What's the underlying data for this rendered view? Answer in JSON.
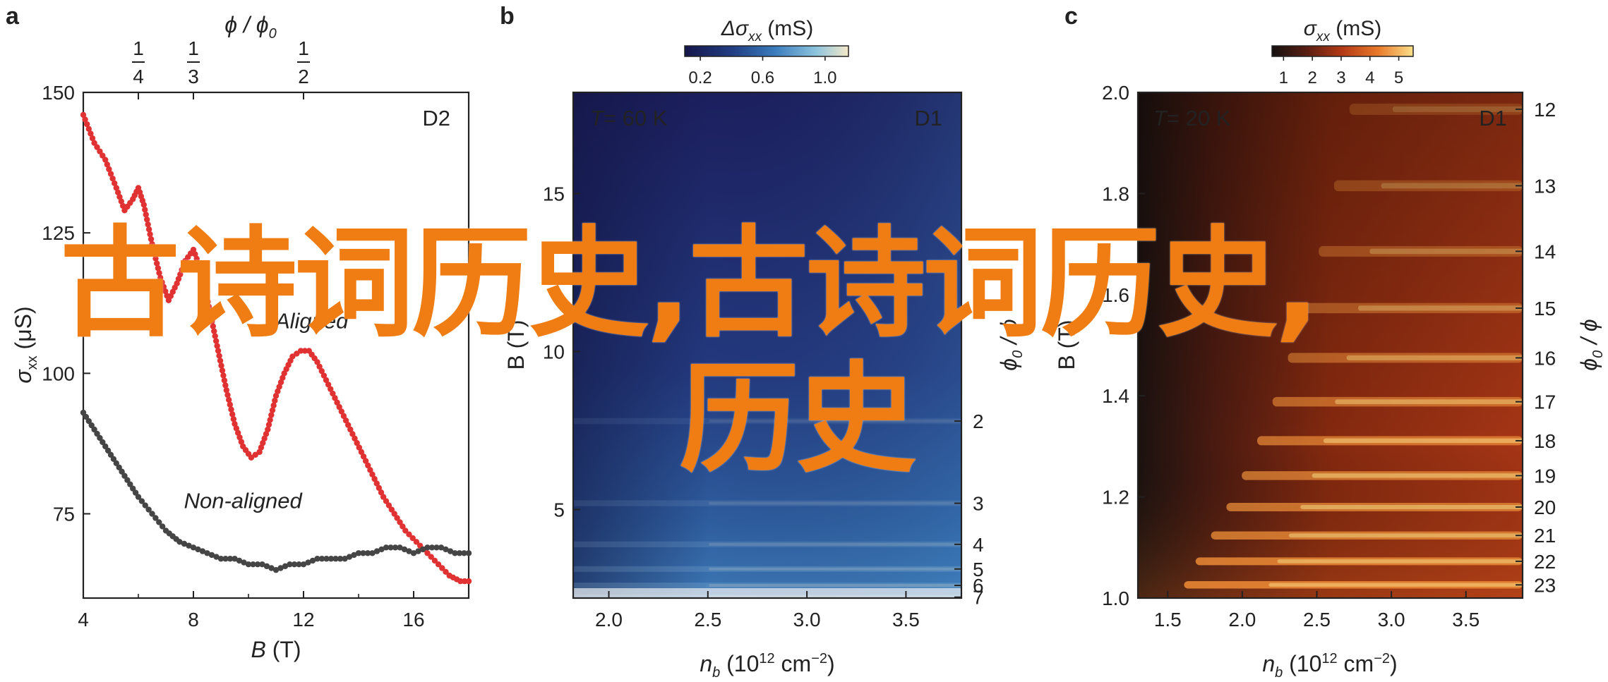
{
  "watermark": {
    "line1": "古诗词历史,古诗词历史,",
    "line2": "历史"
  },
  "chart_data": [
    {
      "panel_label": "a",
      "type": "line",
      "sample_label": "D2",
      "xlabel": "B (T)",
      "xlabel_var": "B",
      "xlabel_unit": "(T)",
      "ylabel_var": "σ",
      "ylabel_sub": "xx",
      "ylabel_unit": "(μS)",
      "top_axis_label": "ϕ / ϕ0",
      "xlim": [
        4,
        18
      ],
      "ylim": [
        60,
        150
      ],
      "xticks": [
        4,
        8,
        12,
        16
      ],
      "yticks": [
        75,
        100,
        125,
        150
      ],
      "top_ticks": [
        {
          "x": 6.0,
          "num": "1",
          "den": "4"
        },
        {
          "x": 8.0,
          "num": "1",
          "den": "3"
        },
        {
          "x": 12.0,
          "num": "1",
          "den": "2"
        }
      ],
      "colors": {
        "aligned": "#e03232",
        "non_aligned": "#454545"
      },
      "series": [
        {
          "name": "Aligned",
          "x": [
            4.0,
            4.4,
            4.8,
            5.2,
            5.5,
            5.8,
            6.0,
            6.2,
            6.5,
            6.8,
            7.1,
            7.4,
            7.7,
            8.0,
            8.3,
            8.6,
            8.9,
            9.2,
            9.5,
            9.8,
            10.1,
            10.4,
            10.7,
            11.0,
            11.3,
            11.6,
            11.9,
            12.2,
            12.5,
            12.9,
            13.3,
            13.7,
            14.1,
            14.5,
            14.9,
            15.3,
            15.7,
            16.1,
            16.5,
            16.9,
            17.3,
            17.7,
            18.0
          ],
          "y": [
            146,
            141,
            138,
            133,
            129,
            131,
            133,
            130,
            123,
            117,
            113,
            116,
            120,
            122,
            118,
            111,
            104,
            97,
            91,
            87,
            85,
            86,
            90,
            96,
            100,
            103,
            104,
            104,
            102,
            98,
            94,
            90,
            86,
            82,
            78,
            75,
            72,
            70,
            68,
            66,
            64,
            63,
            63
          ]
        },
        {
          "name": "Non-aligned",
          "x": [
            4.0,
            4.4,
            4.8,
            5.2,
            5.6,
            6.0,
            6.5,
            7.0,
            7.5,
            8.0,
            8.5,
            9.0,
            9.5,
            10.0,
            10.5,
            11.0,
            11.5,
            12.0,
            12.5,
            13.0,
            13.5,
            14.0,
            14.5,
            15.0,
            15.5,
            16.0,
            16.5,
            17.0,
            17.5,
            18.0
          ],
          "y": [
            93,
            90,
            87,
            84,
            81,
            78,
            75,
            72,
            70,
            69,
            68,
            67,
            67,
            66,
            66,
            65,
            66,
            66,
            67,
            67,
            67,
            68,
            68,
            69,
            69,
            68,
            69,
            69,
            68,
            68
          ]
        }
      ],
      "annotations": [
        {
          "text": "Non-aligned",
          "x": 9.8,
          "y": 76
        },
        {
          "text": "Aligned",
          "x": 12.3,
          "y": 108
        }
      ]
    },
    {
      "panel_label": "b",
      "type": "heatmap",
      "sample_label": "D1",
      "temperature_label": "= 60 K",
      "temperature_var": "T",
      "xlabel_var": "n",
      "xlabel_sub": "b",
      "xlabel_unit_a": "(10",
      "xlabel_unit_exp": "12",
      "xlabel_unit_b": " cm",
      "xlabel_unit_exp2": "−2",
      "xlabel_unit_c": ")",
      "ylabel": "B (T)",
      "xlim": [
        1.82,
        3.78
      ],
      "ylim": [
        2.2,
        18.2
      ],
      "xticks": [
        2.0,
        2.5,
        3.0,
        3.5
      ],
      "yticks": [
        5,
        10,
        15
      ],
      "right_axis_label": "ϕ0 / ϕ",
      "right_ticks": [
        2,
        3,
        4,
        5,
        6,
        7
      ],
      "colorbar": {
        "label_var": "Δσ",
        "label_sub": "xx",
        "label_unit": "(mS)",
        "ticks": [
          0.2,
          0.6,
          1.0
        ],
        "range": [
          0.1,
          1.15
        ]
      },
      "colormap": [
        "#15154a",
        "#223f84",
        "#3a7bbd",
        "#8cc3dd",
        "#f4e8c8"
      ]
    },
    {
      "panel_label": "c",
      "type": "heatmap",
      "sample_label": "D1",
      "temperature_label": "= 20 K",
      "temperature_var": "T",
      "xlabel_var": "n",
      "xlabel_sub": "b",
      "xlabel_unit_a": "(10",
      "xlabel_unit_exp": "12",
      "xlabel_unit_b": " cm",
      "xlabel_unit_exp2": "−2",
      "xlabel_unit_c": ")",
      "ylabel": "B (T)",
      "xlim": [
        1.3,
        3.88
      ],
      "ylim": [
        1.0,
        2.0
      ],
      "xticks": [
        1.5,
        2.0,
        2.5,
        3.0,
        3.5
      ],
      "yticks": [
        1.0,
        1.2,
        1.4,
        1.6,
        1.8,
        2.0
      ],
      "right_axis_label": "ϕ0 / ϕ",
      "right_ticks": [
        12,
        13,
        14,
        15,
        16,
        17,
        18,
        19,
        20,
        21,
        22,
        23
      ],
      "colorbar": {
        "label_var": "σ",
        "label_sub": "xx",
        "label_unit": "(mS)",
        "ticks": [
          1,
          2,
          3,
          4,
          5
        ],
        "range": [
          0.6,
          5.5
        ]
      },
      "colormap": [
        "#141010",
        "#5a1e12",
        "#b53a16",
        "#e8782a",
        "#fbe08a"
      ]
    }
  ]
}
